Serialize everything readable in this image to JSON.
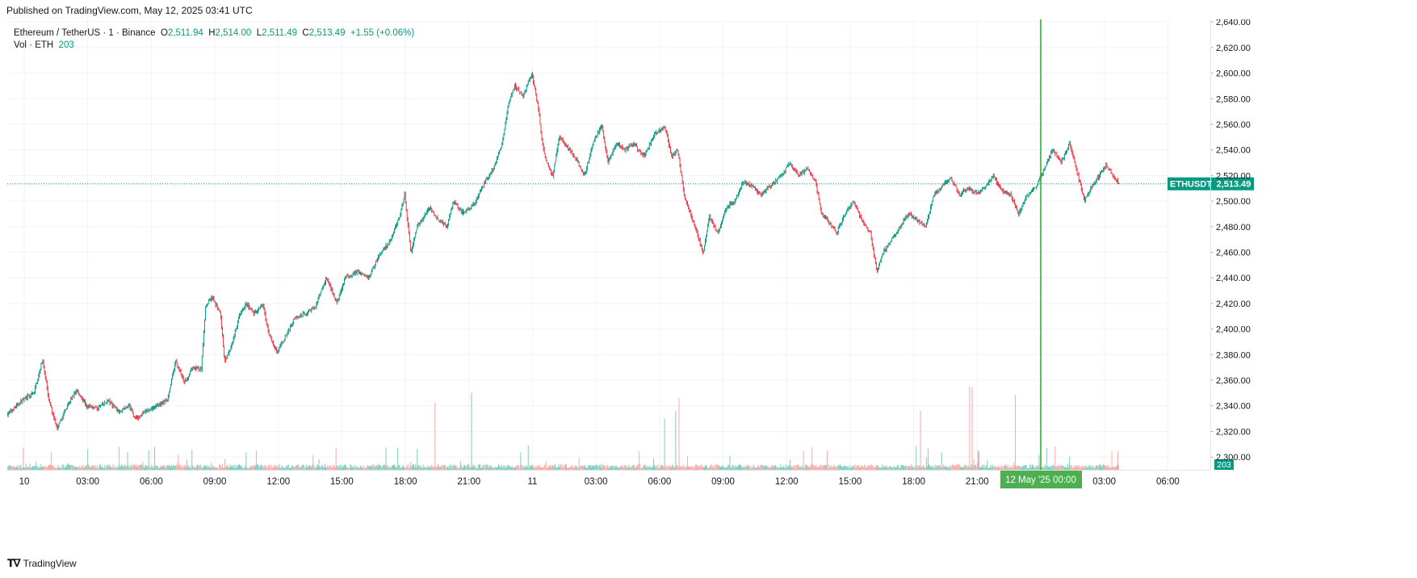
{
  "header": {
    "published": "Published on TradingView.com, May 12, 2025 03:41 UTC"
  },
  "legend": {
    "symbol": "Ethereum / TetherUS · 1 · Binance",
    "o_label": "O",
    "o_value": "2,511.94",
    "h_label": "H",
    "h_value": "2,514.00",
    "l_label": "L",
    "l_value": "2,511.49",
    "c_label": "C",
    "c_value": "2,513.49",
    "change": "+1.55 (+0.06%)",
    "vol_label": "Vol · ETH",
    "vol_value": "203"
  },
  "footer": {
    "brand": "TradingView"
  },
  "colors": {
    "up": "#089981",
    "down": "#f23645",
    "cursor": "#22ab22",
    "grid": "#f0f3fa"
  },
  "chart_data": {
    "type": "candlestick",
    "title": "Ethereum / TetherUS · 1 · Binance",
    "ylim": [
      2290,
      2642
    ],
    "y_ticks": [
      "2,640.00",
      "2,620.00",
      "2,600.00",
      "2,580.00",
      "2,560.00",
      "2,540.00",
      "2,520.00",
      "2,500.00",
      "2,480.00",
      "2,460.00",
      "2,440.00",
      "2,420.00",
      "2,400.00",
      "2,380.00",
      "2,360.00",
      "2,340.00",
      "2,320.00",
      "2,300.00"
    ],
    "y_tick_values": [
      2640,
      2620,
      2600,
      2580,
      2560,
      2540,
      2520,
      2500,
      2480,
      2460,
      2440,
      2420,
      2400,
      2380,
      2360,
      2340,
      2320,
      2300
    ],
    "x_ticks": [
      "10",
      "03:00",
      "06:00",
      "09:00",
      "12:00",
      "15:00",
      "18:00",
      "21:00",
      "11",
      "03:00",
      "06:00",
      "09:00",
      "12:00",
      "15:00",
      "18:00",
      "21:00",
      "03:00",
      "06:00"
    ],
    "x_tick_hours": [
      0,
      3,
      6,
      9,
      12,
      15,
      18,
      21,
      24,
      27,
      30,
      33,
      36,
      39,
      42,
      45,
      51,
      54
    ],
    "x_range_hours": [
      -0.8,
      54.1
    ],
    "last_hour": 51.7,
    "cursor_hour": 48,
    "cursor_label": "12 May '25   00:00",
    "price_label_symbol": "ETHUSDT",
    "price_label_value": "2,513.49",
    "last_price": 2513.49,
    "volume_label": "203",
    "price_path": [
      [
        -0.8,
        2333
      ],
      [
        0,
        2345
      ],
      [
        0.5,
        2350
      ],
      [
        0.9,
        2376
      ],
      [
        1.2,
        2345
      ],
      [
        1.6,
        2322
      ],
      [
        2.0,
        2338
      ],
      [
        2.5,
        2352
      ],
      [
        3.0,
        2340
      ],
      [
        3.5,
        2338
      ],
      [
        4.0,
        2344
      ],
      [
        4.5,
        2336
      ],
      [
        5.0,
        2340
      ],
      [
        5.3,
        2330
      ],
      [
        5.8,
        2336
      ],
      [
        6.3,
        2340
      ],
      [
        6.8,
        2345
      ],
      [
        7.0,
        2360
      ],
      [
        7.2,
        2375
      ],
      [
        7.6,
        2358
      ],
      [
        8.0,
        2370
      ],
      [
        8.4,
        2368
      ],
      [
        8.6,
        2418
      ],
      [
        8.9,
        2425
      ],
      [
        9.3,
        2412
      ],
      [
        9.5,
        2375
      ],
      [
        9.8,
        2385
      ],
      [
        10.2,
        2410
      ],
      [
        10.5,
        2420
      ],
      [
        10.9,
        2412
      ],
      [
        11.3,
        2420
      ],
      [
        11.6,
        2395
      ],
      [
        12.0,
        2382
      ],
      [
        12.4,
        2395
      ],
      [
        12.8,
        2408
      ],
      [
        13.3,
        2412
      ],
      [
        13.8,
        2418
      ],
      [
        14.3,
        2440
      ],
      [
        14.8,
        2420
      ],
      [
        15.2,
        2440
      ],
      [
        15.8,
        2445
      ],
      [
        16.3,
        2440
      ],
      [
        16.8,
        2458
      ],
      [
        17.3,
        2468
      ],
      [
        17.8,
        2490
      ],
      [
        18.0,
        2505
      ],
      [
        18.3,
        2460
      ],
      [
        18.6,
        2480
      ],
      [
        19.2,
        2495
      ],
      [
        19.6,
        2485
      ],
      [
        20.0,
        2480
      ],
      [
        20.3,
        2500
      ],
      [
        20.8,
        2490
      ],
      [
        21.3,
        2498
      ],
      [
        21.8,
        2515
      ],
      [
        22.2,
        2525
      ],
      [
        22.6,
        2545
      ],
      [
        22.9,
        2575
      ],
      [
        23.2,
        2590
      ],
      [
        23.6,
        2582
      ],
      [
        24.0,
        2600
      ],
      [
        24.3,
        2575
      ],
      [
        24.5,
        2545
      ],
      [
        24.7,
        2530
      ],
      [
        25.0,
        2520
      ],
      [
        25.3,
        2550
      ],
      [
        25.8,
        2540
      ],
      [
        26.2,
        2530
      ],
      [
        26.5,
        2520
      ],
      [
        26.9,
        2545
      ],
      [
        27.3,
        2560
      ],
      [
        27.6,
        2530
      ],
      [
        28.0,
        2545
      ],
      [
        28.4,
        2540
      ],
      [
        28.8,
        2545
      ],
      [
        29.3,
        2535
      ],
      [
        29.8,
        2552
      ],
      [
        30.3,
        2558
      ],
      [
        30.6,
        2535
      ],
      [
        30.9,
        2540
      ],
      [
        31.2,
        2505
      ],
      [
        31.5,
        2490
      ],
      [
        31.8,
        2475
      ],
      [
        32.1,
        2460
      ],
      [
        32.4,
        2488
      ],
      [
        32.8,
        2475
      ],
      [
        33.2,
        2495
      ],
      [
        33.6,
        2500
      ],
      [
        34.0,
        2515
      ],
      [
        34.4,
        2512
      ],
      [
        34.8,
        2505
      ],
      [
        35.3,
        2512
      ],
      [
        35.8,
        2520
      ],
      [
        36.2,
        2530
      ],
      [
        36.6,
        2520
      ],
      [
        37.0,
        2525
      ],
      [
        37.4,
        2515
      ],
      [
        37.7,
        2490
      ],
      [
        38.0,
        2485
      ],
      [
        38.4,
        2475
      ],
      [
        38.8,
        2490
      ],
      [
        39.2,
        2500
      ],
      [
        39.6,
        2485
      ],
      [
        40.0,
        2475
      ],
      [
        40.3,
        2445
      ],
      [
        40.6,
        2460
      ],
      [
        41.0,
        2470
      ],
      [
        41.4,
        2480
      ],
      [
        41.8,
        2490
      ],
      [
        42.2,
        2485
      ],
      [
        42.6,
        2480
      ],
      [
        43.0,
        2505
      ],
      [
        43.4,
        2512
      ],
      [
        43.8,
        2518
      ],
      [
        44.2,
        2505
      ],
      [
        44.6,
        2510
      ],
      [
        45.0,
        2506
      ],
      [
        45.4,
        2510
      ],
      [
        45.8,
        2520
      ],
      [
        46.2,
        2508
      ],
      [
        46.6,
        2505
      ],
      [
        47.0,
        2490
      ],
      [
        47.4,
        2505
      ],
      [
        47.8,
        2510
      ],
      [
        48.2,
        2525
      ],
      [
        48.6,
        2540
      ],
      [
        49.0,
        2530
      ],
      [
        49.4,
        2545
      ],
      [
        49.8,
        2520
      ],
      [
        50.1,
        2500
      ],
      [
        50.4,
        2510
      ],
      [
        50.8,
        2520
      ],
      [
        51.1,
        2528
      ],
      [
        51.4,
        2522
      ],
      [
        51.7,
        2513.49
      ]
    ]
  }
}
